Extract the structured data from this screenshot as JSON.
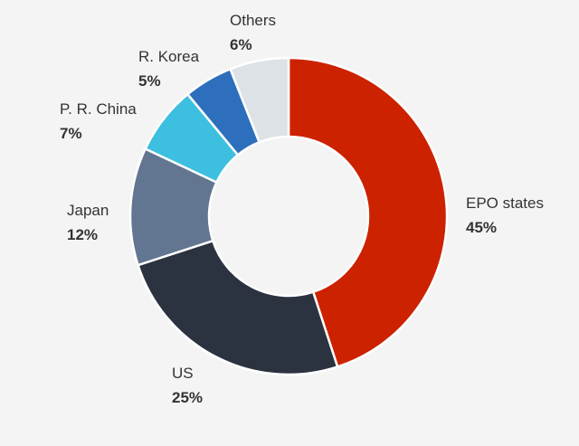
{
  "chart_data": {
    "type": "pie",
    "donut": true,
    "categories": [
      "EPO states",
      "US",
      "Japan",
      "P. R. China",
      "R. Korea",
      "Others"
    ],
    "values": [
      45,
      25,
      12,
      7,
      5,
      6
    ],
    "labels": [
      "45%",
      "25%",
      "12%",
      "7%",
      "5%",
      "6%"
    ],
    "colors": [
      "#cc2200",
      "#2b3240",
      "#627591",
      "#3dbfe0",
      "#2d6fbd",
      "#dde2e6"
    ],
    "legend": "labels beside slices"
  }
}
